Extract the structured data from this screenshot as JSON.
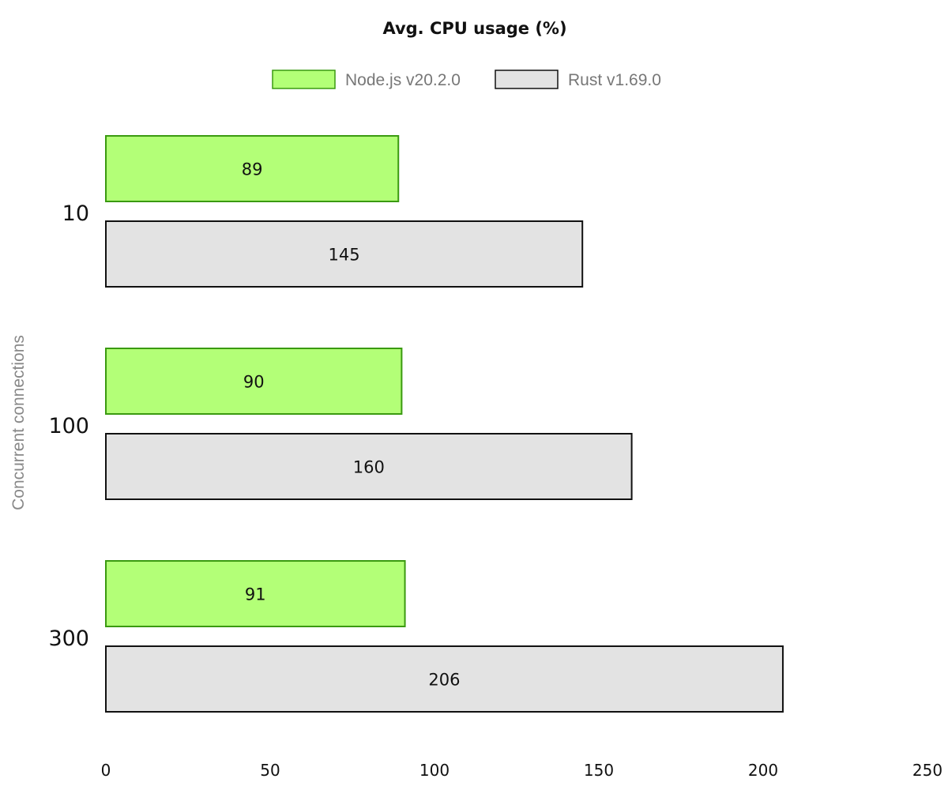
{
  "chart_data": {
    "type": "bar",
    "orientation": "horizontal",
    "title": "Avg. CPU usage (%)",
    "ylabel": "Concurrent connections",
    "xlabel": "",
    "categories": [
      "10",
      "100",
      "300"
    ],
    "series": [
      {
        "name": "Node.js v20.2.0",
        "values": [
          89,
          90,
          91
        ],
        "fill": "#b3ff77",
        "stroke": "#3a9a10"
      },
      {
        "name": "Rust v1.69.0",
        "values": [
          145,
          160,
          206
        ],
        "fill": "#e3e3e3",
        "stroke": "#111111"
      }
    ],
    "xlim": [
      0,
      250
    ],
    "xticks": [
      "0",
      "50",
      "100",
      "150",
      "200",
      "250"
    ],
    "legend": "top-center",
    "grid": false
  }
}
